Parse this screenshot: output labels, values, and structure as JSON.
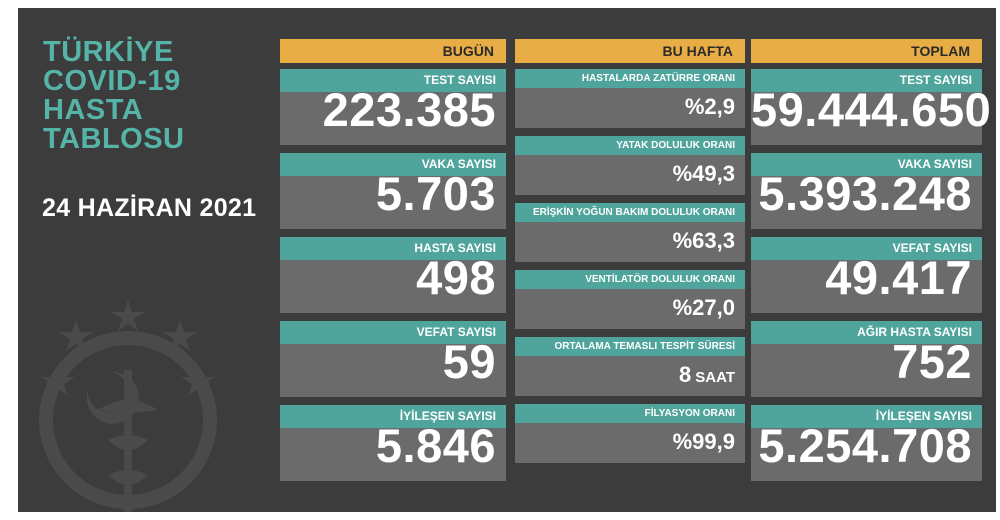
{
  "title": [
    "TÜRKİYE",
    "COVID-19",
    "HASTA",
    "TABLOSU"
  ],
  "date": "24 HAZİRAN 2021",
  "columns": {
    "today": "BUGÜN",
    "week": "BU HAFTA",
    "total": "TOPLAM"
  },
  "today": [
    {
      "label": "TEST SAYISI",
      "value": "223.385"
    },
    {
      "label": "VAKA SAYISI",
      "value": "5.703"
    },
    {
      "label": "HASTA SAYISI",
      "value": "498"
    },
    {
      "label": "VEFAT SAYISI",
      "value": "59"
    },
    {
      "label": "İYİLEŞEN SAYISI",
      "value": "5.846"
    }
  ],
  "week": [
    {
      "label": "HASTALARDA ZATÜRRE ORANI",
      "value": "%2,9"
    },
    {
      "label": "YATAK DOLULUK ORANI",
      "value": "%49,3"
    },
    {
      "label": "ERİŞKİN YOĞUN BAKIM DOLULUK ORANI",
      "value": "%63,3"
    },
    {
      "label": "VENTİLATÖR DOLULUK ORANI",
      "value": "%27,0"
    },
    {
      "label": "ORTALAMA TEMASLI TESPİT SÜRESİ",
      "value": "8",
      "unit": "SAAT"
    },
    {
      "label": "FİLYASYON ORANI",
      "value": "%99,9"
    }
  ],
  "total": [
    {
      "label": "TEST SAYISI",
      "value": "59.444.650"
    },
    {
      "label": "VAKA SAYISI",
      "value": "5.393.248"
    },
    {
      "label": "VEFAT SAYISI",
      "value": "49.417"
    },
    {
      "label": "AĞIR HASTA SAYISI",
      "value": "752"
    },
    {
      "label": "İYİLEŞEN SAYISI",
      "value": "5.254.708"
    }
  ],
  "colors": {
    "background": "#3c3c3c",
    "header": "#e8ad44",
    "label": "#4fa59b",
    "card": "#6b6b6b",
    "title": "#56b3a8"
  },
  "icons": [
    "ministry-emblem-icon"
  ]
}
